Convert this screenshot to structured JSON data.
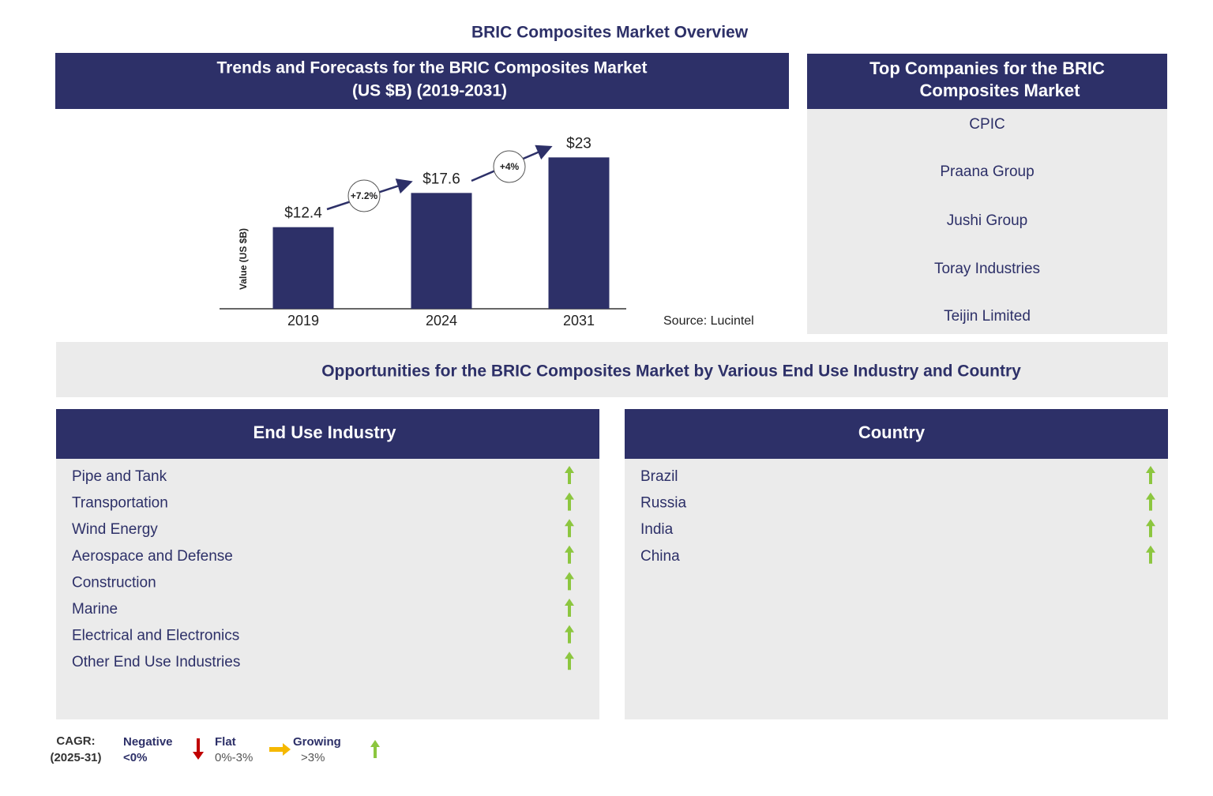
{
  "title": "BRIC Composites Market Overview",
  "chart_data": {
    "type": "bar",
    "title_lines": [
      "Trends and Forecasts for the BRIC Composites Market",
      "(US $B) (2019-2031)"
    ],
    "y_label": "Value (US $B)",
    "categories": [
      "2019",
      "2024",
      "2031"
    ],
    "values": [
      12.4,
      17.6,
      23
    ],
    "value_labels": [
      "$12.4",
      "$17.6",
      "$23"
    ],
    "growth_labels": [
      "+7.2%",
      "+4%"
    ],
    "color": "#2d3068",
    "ylim": [
      0,
      27
    ],
    "source": "Source: Lucintel"
  },
  "companies": {
    "title_lines": [
      "Top Companies for the BRIC",
      "Composites Market"
    ],
    "items": [
      "CPIC",
      "Praana Group",
      "Jushi Group",
      "Toray Industries",
      "Teijin Limited"
    ]
  },
  "opportunities": {
    "title": "Opportunities for the BRIC Composites Market by Various End Use Industry and Country",
    "segments": [
      {
        "title": "End Use Industry",
        "items": [
          "Pipe and Tank",
          "Transportation",
          "Wind Energy",
          "Aerospace and Defense",
          "Construction",
          "Marine",
          "Electrical and Electronics",
          "Other End Use Industries"
        ]
      },
      {
        "title": "Country",
        "items": [
          "Brazil",
          "Russia",
          "India",
          "China"
        ]
      }
    ]
  },
  "legend": {
    "title_lines": [
      "CAGR:",
      "(2025-31)"
    ],
    "items": [
      {
        "label": "Negative",
        "range": "<0%"
      },
      {
        "label": "Flat",
        "range": "0%-3%"
      },
      {
        "label": "Growing",
        "range": ">3%"
      }
    ]
  }
}
